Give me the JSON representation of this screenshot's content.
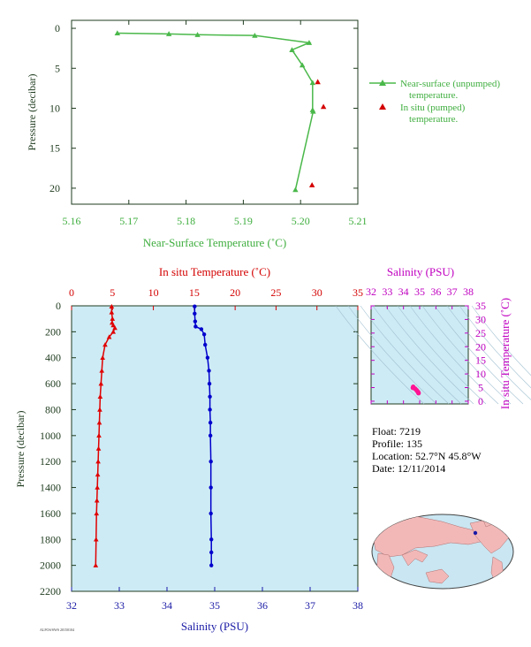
{
  "chart_data": [
    {
      "type": "line",
      "xlabel": "Near-Surface Temperature (˚C)",
      "ylabel": "Pressure (decibar)",
      "xlim": [
        5.16,
        5.21
      ],
      "ylim": [
        22,
        -1
      ],
      "x_ticks": [
        "5.16",
        "5.17",
        "5.18",
        "5.19",
        "5.20",
        "5.21"
      ],
      "y_ticks": [
        "0",
        "5",
        "10",
        "15",
        "20"
      ],
      "series": [
        {
          "name": "Near-surface (unpumped) temperature.",
          "color": "#4ab84a",
          "marker": "triangle",
          "x": [
            5.168,
            5.177,
            5.182,
            5.192,
            5.2015,
            5.1985,
            5.2003,
            5.2021,
            5.2021,
            5.2022,
            5.1991
          ],
          "y": [
            0.6,
            0.7,
            0.8,
            0.9,
            1.8,
            2.7,
            4.6,
            6.8,
            10.2,
            10.4,
            20.2
          ]
        },
        {
          "name": "In situ (pumped) temperature.",
          "color": "#d40000",
          "marker": "triangle",
          "line": false,
          "x": [
            5.203,
            5.204,
            5.202
          ],
          "y": [
            6.7,
            9.8,
            19.6
          ]
        }
      ],
      "legend": "right"
    },
    {
      "type": "line",
      "x_top_label": "In situ Temperature (˚C)",
      "x_bottom_label": "Salinity (PSU)",
      "ylabel": "Pressure (decibar)",
      "xlim_top": [
        0,
        35
      ],
      "xlim_bottom": [
        32,
        38
      ],
      "ylim": [
        2200,
        0
      ],
      "x_top_ticks": [
        "0",
        "5",
        "10",
        "15",
        "20",
        "25",
        "30",
        "35"
      ],
      "x_bottom_ticks": [
        "32",
        "33",
        "34",
        "35",
        "36",
        "37",
        "38"
      ],
      "y_ticks": [
        "0",
        "200",
        "400",
        "600",
        "800",
        "1000",
        "1200",
        "1400",
        "1600",
        "1800",
        "2000",
        "2200"
      ],
      "series": [
        {
          "name": "In situ Temperature",
          "color": "#e00000",
          "marker": "triangle",
          "axis": "top",
          "x": [
            4.9,
            4.9,
            5.0,
            4.95,
            5.1,
            5.3,
            5.1,
            4.6,
            4.1,
            3.8,
            3.7,
            3.6,
            3.5,
            3.45,
            3.4,
            3.35,
            3.3,
            3.25,
            3.2,
            3.15,
            3.1,
            3.05,
            3.0,
            2.95
          ],
          "y": [
            5,
            50,
            100,
            130,
            150,
            170,
            200,
            240,
            300,
            400,
            500,
            600,
            700,
            800,
            900,
            1000,
            1100,
            1200,
            1300,
            1400,
            1500,
            1600,
            1800,
            2000
          ]
        },
        {
          "name": "Salinity",
          "color": "#0000cc",
          "marker": "circle",
          "axis": "bottom",
          "x": [
            34.58,
            34.58,
            34.59,
            34.6,
            34.72,
            34.78,
            34.8,
            34.85,
            34.88,
            34.89,
            34.9,
            34.9,
            34.91,
            34.91,
            34.92,
            34.92,
            34.92,
            34.93,
            34.93,
            34.93
          ],
          "y": [
            5,
            60,
            120,
            160,
            180,
            220,
            300,
            400,
            500,
            600,
            700,
            800,
            900,
            1000,
            1200,
            1400,
            1600,
            1800,
            1900,
            2000
          ]
        }
      ]
    },
    {
      "type": "scatter",
      "xlabel": "Salinity (PSU)",
      "ylabel": "In situ Temperature (˚C)",
      "xlim": [
        32,
        38
      ],
      "ylim": [
        -1,
        35
      ],
      "x_ticks": [
        "32",
        "33",
        "34",
        "35",
        "36",
        "37",
        "38"
      ],
      "y_ticks": [
        "0",
        "5",
        "10",
        "15",
        "20",
        "25",
        "30",
        "35"
      ],
      "color": "#ff1493",
      "x": [
        34.58,
        34.6,
        34.72,
        34.8,
        34.85,
        34.9,
        34.92,
        34.93
      ],
      "y": [
        4.9,
        5.3,
        4.6,
        4.1,
        3.7,
        3.4,
        3.1,
        2.95
      ]
    }
  ],
  "float_info": {
    "float": "Float:  7219",
    "profile": "Profile:  135",
    "location": "Location:  52.7°N  45.8°W",
    "date": "Date:  12/11/2014"
  },
  "footer_stamp": "ALFOS/SWS 20150104",
  "colors": {
    "plot_bg": "#cdebf5",
    "map_ocean": "#c9e6f2",
    "map_land": "#f2b8b8",
    "float_marker": "#1a1aa6"
  }
}
